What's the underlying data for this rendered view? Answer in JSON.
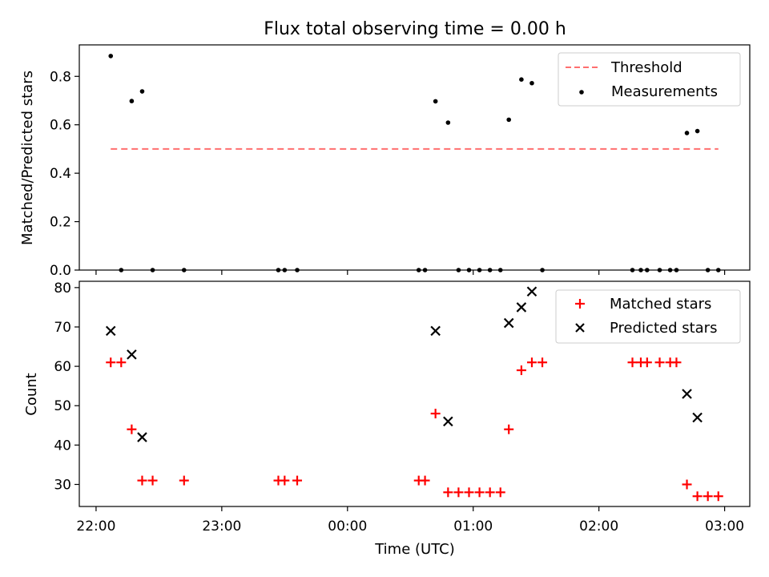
{
  "chart_data": [
    {
      "type": "scatter",
      "title": "Flux total observing time = 0.00 h",
      "xlabel": "",
      "ylabel": "Matched/Predicted stars",
      "xlim": [
        "21:52",
        "03:12"
      ],
      "ylim": [
        0,
        0.93
      ],
      "yticks": [
        0.0,
        0.2,
        0.4,
        0.6,
        0.8
      ],
      "yticklabels": [
        "0.0",
        "0.2",
        "0.4",
        "0.6",
        "0.8"
      ],
      "legend": {
        "position": "top-right"
      },
      "threshold": {
        "name": "Threshold",
        "value": 0.5,
        "x_start": "22:07",
        "x_end": "02:57",
        "color": "#ff6f6f",
        "style": "dashed"
      },
      "series": [
        {
          "name": "Measurements",
          "color": "#000000",
          "marker": "dot",
          "points": [
            {
              "x": "22:07",
              "y": 0.884
            },
            {
              "x": "22:12",
              "y": 0.0
            },
            {
              "x": "22:17",
              "y": 0.698
            },
            {
              "x": "22:22",
              "y": 0.738
            },
            {
              "x": "22:27",
              "y": 0.0
            },
            {
              "x": "22:42",
              "y": 0.0
            },
            {
              "x": "23:27",
              "y": 0.0
            },
            {
              "x": "23:30",
              "y": 0.0
            },
            {
              "x": "23:36",
              "y": 0.0
            },
            {
              "x": "00:34",
              "y": 0.0
            },
            {
              "x": "00:37",
              "y": 0.0
            },
            {
              "x": "00:42",
              "y": 0.697
            },
            {
              "x": "00:48",
              "y": 0.609
            },
            {
              "x": "00:53",
              "y": 0.0
            },
            {
              "x": "00:58",
              "y": 0.0
            },
            {
              "x": "01:03",
              "y": 0.0
            },
            {
              "x": "01:08",
              "y": 0.0
            },
            {
              "x": "01:13",
              "y": 0.0
            },
            {
              "x": "01:17",
              "y": 0.621
            },
            {
              "x": "01:23",
              "y": 0.787
            },
            {
              "x": "01:28",
              "y": 0.772
            },
            {
              "x": "01:33",
              "y": 0.0
            },
            {
              "x": "02:16",
              "y": 0.0
            },
            {
              "x": "02:20",
              "y": 0.0
            },
            {
              "x": "02:23",
              "y": 0.0
            },
            {
              "x": "02:29",
              "y": 0.0
            },
            {
              "x": "02:34",
              "y": 0.0
            },
            {
              "x": "02:37",
              "y": 0.0
            },
            {
              "x": "02:42",
              "y": 0.566
            },
            {
              "x": "02:47",
              "y": 0.574
            },
            {
              "x": "02:52",
              "y": 0.0
            },
            {
              "x": "02:57",
              "y": 0.0
            }
          ]
        }
      ]
    },
    {
      "type": "scatter",
      "title": "",
      "xlabel": "Time (UTC)",
      "ylabel": "Count",
      "xlim": [
        "21:52",
        "03:12"
      ],
      "ylim": [
        24.4,
        81.6
      ],
      "yticks": [
        30,
        40,
        50,
        60,
        70,
        80
      ],
      "yticklabels": [
        "30",
        "40",
        "50",
        "60",
        "70",
        "80"
      ],
      "xticks": [
        "22:00",
        "23:00",
        "00:00",
        "01:00",
        "02:00",
        "03:00"
      ],
      "xticklabels": [
        "22:00",
        "23:00",
        "00:00",
        "01:00",
        "02:00",
        "03:00"
      ],
      "legend": {
        "position": "top-right"
      },
      "series": [
        {
          "name": "Matched stars",
          "color": "#ff0000",
          "marker": "plus",
          "points": [
            {
              "x": "22:07",
              "y": 61
            },
            {
              "x": "22:12",
              "y": 61
            },
            {
              "x": "22:17",
              "y": 44
            },
            {
              "x": "22:22",
              "y": 31
            },
            {
              "x": "22:27",
              "y": 31
            },
            {
              "x": "22:42",
              "y": 31
            },
            {
              "x": "23:27",
              "y": 31
            },
            {
              "x": "23:30",
              "y": 31
            },
            {
              "x": "23:36",
              "y": 31
            },
            {
              "x": "00:34",
              "y": 31
            },
            {
              "x": "00:37",
              "y": 31
            },
            {
              "x": "00:42",
              "y": 48
            },
            {
              "x": "00:48",
              "y": 28
            },
            {
              "x": "00:53",
              "y": 28
            },
            {
              "x": "00:58",
              "y": 28
            },
            {
              "x": "01:03",
              "y": 28
            },
            {
              "x": "01:08",
              "y": 28
            },
            {
              "x": "01:13",
              "y": 28
            },
            {
              "x": "01:17",
              "y": 44
            },
            {
              "x": "01:23",
              "y": 59
            },
            {
              "x": "01:28",
              "y": 61
            },
            {
              "x": "01:33",
              "y": 61
            },
            {
              "x": "02:16",
              "y": 61
            },
            {
              "x": "02:20",
              "y": 61
            },
            {
              "x": "02:23",
              "y": 61
            },
            {
              "x": "02:29",
              "y": 61
            },
            {
              "x": "02:34",
              "y": 61
            },
            {
              "x": "02:37",
              "y": 61
            },
            {
              "x": "02:42",
              "y": 30
            },
            {
              "x": "02:47",
              "y": 27
            },
            {
              "x": "02:52",
              "y": 27
            },
            {
              "x": "02:57",
              "y": 27
            }
          ]
        },
        {
          "name": "Predicted stars",
          "color": "#000000",
          "marker": "x",
          "points": [
            {
              "x": "22:07",
              "y": 69
            },
            {
              "x": "22:17",
              "y": 63
            },
            {
              "x": "22:22",
              "y": 42
            },
            {
              "x": "00:42",
              "y": 69
            },
            {
              "x": "00:48",
              "y": 46
            },
            {
              "x": "01:17",
              "y": 71
            },
            {
              "x": "01:23",
              "y": 75
            },
            {
              "x": "01:28",
              "y": 79
            },
            {
              "x": "02:42",
              "y": 53
            },
            {
              "x": "02:47",
              "y": 47
            }
          ]
        }
      ]
    }
  ]
}
